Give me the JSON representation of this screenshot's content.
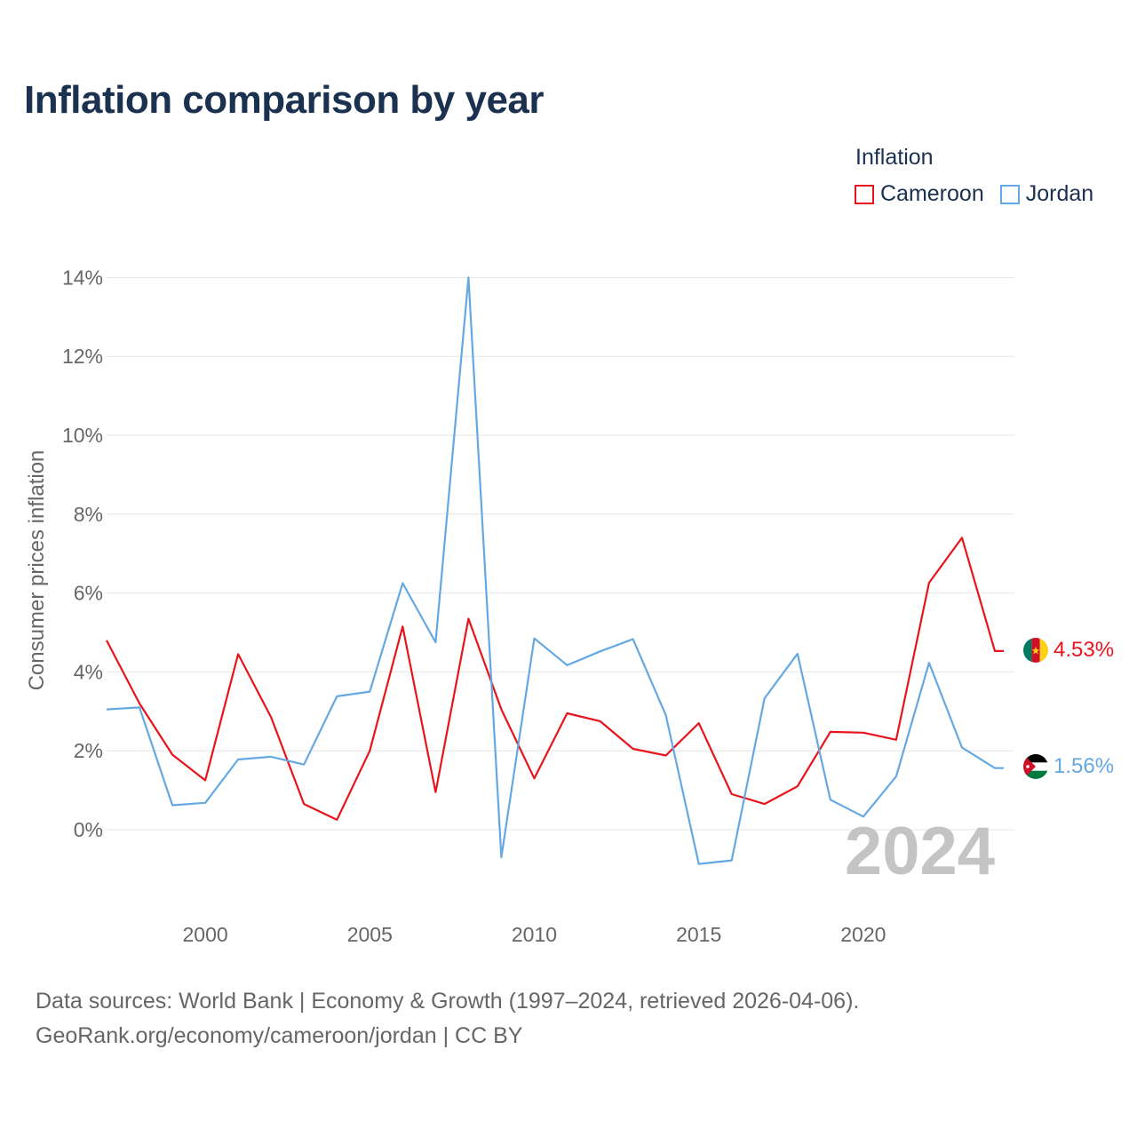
{
  "title": "Inflation comparison by year",
  "legend": {
    "title": "Inflation",
    "items": [
      {
        "label": "Cameroon",
        "color": "#e8141b"
      },
      {
        "label": "Jordan",
        "color": "#64a8e3"
      }
    ]
  },
  "footer": {
    "line1": "Data sources: World Bank | Economy & Growth (1997–2024, retrieved 2026-04-06).",
    "line2": "GeoRank.org/economy/cameroon/jordan | CC BY"
  },
  "chart_data": {
    "type": "line",
    "ylabel": "Consumer prices inflation",
    "ylim": [
      -2.0,
      14.0
    ],
    "xlim": [
      1997,
      2024
    ],
    "yticks": [
      0,
      2,
      4,
      6,
      8,
      10,
      12,
      14
    ],
    "ytick_labels": [
      "0%",
      "2%",
      "4%",
      "6%",
      "8%",
      "10%",
      "12%",
      "14%"
    ],
    "xticks": [
      2000,
      2005,
      2010,
      2015,
      2020
    ],
    "xtick_labels": [
      "2000",
      "2005",
      "2010",
      "2015",
      "2020"
    ],
    "grid": true,
    "watermark": "2024",
    "x": [
      1997,
      1998,
      1999,
      2000,
      2001,
      2002,
      2003,
      2004,
      2005,
      2006,
      2007,
      2008,
      2009,
      2010,
      2011,
      2012,
      2013,
      2014,
      2015,
      2016,
      2017,
      2018,
      2019,
      2020,
      2021,
      2022,
      2023,
      2024
    ],
    "series": [
      {
        "name": "Cameroon",
        "color": "#e8141b",
        "end_label": "4.53%",
        "flag": "cameroon-flag",
        "values": [
          4.8,
          3.2,
          1.9,
          1.25,
          4.45,
          2.85,
          0.65,
          0.25,
          2.0,
          5.15,
          0.95,
          5.35,
          3.05,
          1.3,
          2.95,
          2.75,
          2.05,
          1.88,
          2.7,
          0.9,
          0.65,
          1.1,
          2.48,
          2.46,
          2.28,
          6.26,
          7.4,
          4.53
        ]
      },
      {
        "name": "Jordan",
        "color": "#64a8e3",
        "end_label": "1.56%",
        "flag": "jordan-flag",
        "values": [
          3.05,
          3.1,
          0.62,
          0.68,
          1.78,
          1.85,
          1.65,
          3.38,
          3.5,
          6.25,
          4.75,
          14.0,
          -0.7,
          4.85,
          4.17,
          4.52,
          4.83,
          2.9,
          -0.87,
          -0.78,
          3.33,
          4.46,
          0.76,
          0.33,
          1.35,
          4.23,
          2.08,
          1.56
        ]
      }
    ]
  }
}
